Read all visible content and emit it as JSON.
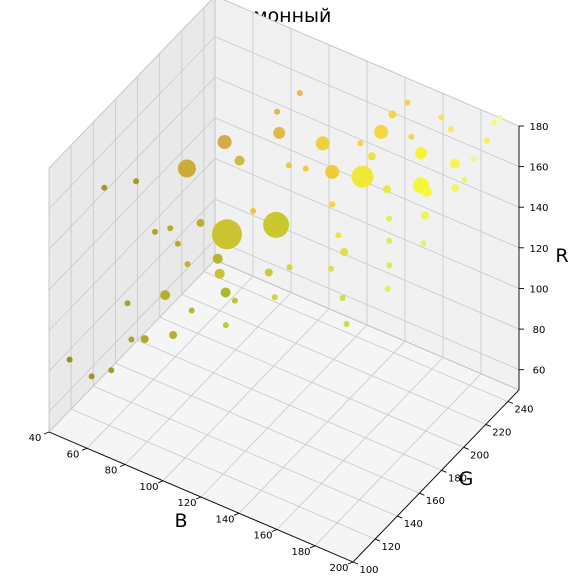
{
  "chart_data": {
    "type": "scatter3d",
    "title": "Лимонный",
    "xlabel": "B",
    "ylabel": "G",
    "zlabel": "R",
    "xlim": [
      40,
      200
    ],
    "ylim": [
      100,
      250
    ],
    "zlim": [
      50,
      180
    ],
    "xticks": [
      "40",
      "60",
      "80",
      "100",
      "120",
      "140",
      "160",
      "180",
      "200"
    ],
    "yticks": [
      "100",
      "120",
      "140",
      "160",
      "180",
      "200",
      "220",
      "240"
    ],
    "zticks": [
      "60",
      "80",
      "100",
      "120",
      "140",
      "160",
      "180"
    ],
    "grid": true,
    "colors": {
      "pane_left": "#e9e9e9",
      "pane_back": "#f1f1f1",
      "pane_floor": "#f5f5f5",
      "pane_edge": "#b8b8b8",
      "grid": "#c8c8c8"
    },
    "points": [
      {
        "x": 45,
        "y": 110,
        "z": 82,
        "s": 3,
        "c": "#8f8a0e"
      },
      {
        "x": 52,
        "y": 118,
        "z": 72,
        "s": 3,
        "c": "#978f12"
      },
      {
        "x": 60,
        "y": 122,
        "z": 76,
        "s": 3,
        "c": "#9c9414"
      },
      {
        "x": 63,
        "y": 135,
        "z": 85,
        "s": 3,
        "c": "#a59a16"
      },
      {
        "x": 58,
        "y": 140,
        "z": 98,
        "s": 3,
        "c": "#a3981a"
      },
      {
        "x": 70,
        "y": 135,
        "z": 88,
        "s": 4,
        "c": "#a8a218"
      },
      {
        "x": 72,
        "y": 150,
        "z": 102,
        "s": 5,
        "c": "#b2a81c"
      },
      {
        "x": 82,
        "y": 140,
        "z": 92,
        "s": 4,
        "c": "#aeaa1f"
      },
      {
        "x": 86,
        "y": 150,
        "z": 100,
        "s": 3,
        "c": "#b6ae21"
      },
      {
        "x": 55,
        "y": 170,
        "z": 115,
        "s": 3,
        "c": "#a89c18"
      },
      {
        "x": 48,
        "y": 165,
        "z": 140,
        "s": 3,
        "c": "#a09516"
      },
      {
        "x": 40,
        "y": 150,
        "z": 142,
        "s": 3,
        "c": "#9a9012"
      },
      {
        "x": 63,
        "y": 170,
        "z": 120,
        "s": 3,
        "c": "#b0a31b"
      },
      {
        "x": 70,
        "y": 165,
        "z": 118,
        "s": 3,
        "c": "#b4a41e"
      },
      {
        "x": 76,
        "y": 175,
        "z": 125,
        "s": 4,
        "c": "#b8aa20"
      },
      {
        "x": 78,
        "y": 160,
        "z": 114,
        "s": 3,
        "c": "#baad22"
      },
      {
        "x": 66,
        "y": 180,
        "z": 145,
        "s": 9,
        "c": "#c7a62a"
      },
      {
        "x": 90,
        "y": 175,
        "z": 125,
        "s": 15,
        "c": "#c8c020"
      },
      {
        "x": 88,
        "y": 170,
        "z": 115,
        "s": 5,
        "c": "#b3b020"
      },
      {
        "x": 92,
        "y": 165,
        "z": 112,
        "s": 5,
        "c": "#c4be22"
      },
      {
        "x": 100,
        "y": 165,
        "z": 102,
        "s": 3,
        "c": "#bcbc24"
      },
      {
        "x": 98,
        "y": 160,
        "z": 108,
        "s": 5,
        "c": "#a6b41e"
      },
      {
        "x": 104,
        "y": 150,
        "z": 100,
        "s": 3,
        "c": "#b9c526"
      },
      {
        "x": 85,
        "y": 195,
        "z": 148,
        "s": 5,
        "c": "#c9b832"
      },
      {
        "x": 80,
        "y": 190,
        "z": 158,
        "s": 7,
        "c": "#d4a43a"
      },
      {
        "x": 95,
        "y": 190,
        "z": 130,
        "s": 3,
        "c": "#e6c228"
      },
      {
        "x": 110,
        "y": 185,
        "z": 132,
        "s": 13,
        "c": "#c7c31f"
      },
      {
        "x": 112,
        "y": 175,
        "z": 115,
        "s": 4,
        "c": "#c9c629"
      },
      {
        "x": 118,
        "y": 170,
        "z": 108,
        "s": 3,
        "c": "#cfd02a"
      },
      {
        "x": 120,
        "y": 180,
        "z": 118,
        "s": 3,
        "c": "#d2d32f"
      },
      {
        "x": 100,
        "y": 205,
        "z": 162,
        "s": 6,
        "c": "#e0b43c"
      },
      {
        "x": 96,
        "y": 210,
        "z": 168,
        "s": 3,
        "c": "#dcb43a"
      },
      {
        "x": 108,
        "y": 200,
        "z": 152,
        "s": 3,
        "c": "#e8c730"
      },
      {
        "x": 114,
        "y": 205,
        "z": 150,
        "s": 3,
        "c": "#f0cb2e"
      },
      {
        "x": 120,
        "y": 210,
        "z": 162,
        "s": 7,
        "c": "#f2cb33"
      },
      {
        "x": 125,
        "y": 210,
        "z": 150,
        "s": 7,
        "c": "#f0c92c"
      },
      {
        "x": 105,
        "y": 215,
        "z": 178,
        "s": 3,
        "c": "#eeb044"
      },
      {
        "x": 128,
        "y": 205,
        "z": 138,
        "s": 3,
        "c": "#f4d030"
      },
      {
        "x": 134,
        "y": 200,
        "z": 128,
        "s": 3,
        "c": "#e8e33a"
      },
      {
        "x": 136,
        "y": 190,
        "z": 118,
        "s": 3,
        "c": "#d8dc3c"
      },
      {
        "x": 140,
        "y": 195,
        "z": 125,
        "s": 4,
        "c": "#d9e13f"
      },
      {
        "x": 145,
        "y": 185,
        "z": 110,
        "s": 3,
        "c": "#c6dd38"
      },
      {
        "x": 150,
        "y": 180,
        "z": 102,
        "s": 3,
        "c": "#c2dc3b"
      },
      {
        "x": 138,
        "y": 215,
        "z": 150,
        "s": 11,
        "c": "#f1e82a"
      },
      {
        "x": 134,
        "y": 220,
        "z": 162,
        "s": 3,
        "c": "#f3d030"
      },
      {
        "x": 140,
        "y": 220,
        "z": 158,
        "s": 4,
        "c": "#ece23b"
      },
      {
        "x": 142,
        "y": 225,
        "z": 168,
        "s": 7,
        "c": "#f2d632"
      },
      {
        "x": 148,
        "y": 220,
        "z": 145,
        "s": 4,
        "c": "#e6e83a"
      },
      {
        "x": 152,
        "y": 215,
        "z": 135,
        "s": 3,
        "c": "#e4ee3e"
      },
      {
        "x": 155,
        "y": 210,
        "z": 128,
        "s": 3,
        "c": "#dce94a"
      },
      {
        "x": 158,
        "y": 205,
        "z": 120,
        "s": 3,
        "c": "#d8ea48"
      },
      {
        "x": 160,
        "y": 200,
        "z": 112,
        "s": 3,
        "c": "#e0ef4a"
      },
      {
        "x": 145,
        "y": 230,
        "z": 175,
        "s": 4,
        "c": "#f5d236"
      },
      {
        "x": 150,
        "y": 235,
        "z": 180,
        "s": 3,
        "c": "#f6cc48"
      },
      {
        "x": 155,
        "y": 230,
        "z": 168,
        "s": 3,
        "c": "#f1d24c"
      },
      {
        "x": 160,
        "y": 230,
        "z": 162,
        "s": 6,
        "c": "#f7f228"
      },
      {
        "x": 163,
        "y": 225,
        "z": 150,
        "s": 8,
        "c": "#f4f626"
      },
      {
        "x": 166,
        "y": 225,
        "z": 148,
        "s": 5,
        "c": "#f5f73a"
      },
      {
        "x": 168,
        "y": 220,
        "z": 140,
        "s": 4,
        "c": "#eaf648"
      },
      {
        "x": 170,
        "y": 215,
        "z": 130,
        "s": 3,
        "c": "#e3f154"
      },
      {
        "x": 165,
        "y": 240,
        "z": 176,
        "s": 3,
        "c": "#f8dd4c"
      },
      {
        "x": 170,
        "y": 240,
        "z": 172,
        "s": 3,
        "c": "#f2ec5a"
      },
      {
        "x": 175,
        "y": 235,
        "z": 160,
        "s": 5,
        "c": "#f5f541"
      },
      {
        "x": 178,
        "y": 230,
        "z": 152,
        "s": 4,
        "c": "#eef55a"
      },
      {
        "x": 180,
        "y": 235,
        "z": 154,
        "s": 3,
        "c": "#eaf568"
      },
      {
        "x": 182,
        "y": 240,
        "z": 162,
        "s": 3,
        "c": "#f6f27a"
      },
      {
        "x": 186,
        "y": 245,
        "z": 170,
        "s": 3,
        "c": "#f3f04e"
      },
      {
        "x": 188,
        "y": 248,
        "z": 178,
        "s": 3,
        "c": "#f7f580"
      },
      {
        "x": 190,
        "y": 250,
        "z": 180,
        "s": 3,
        "c": "#f8f89a"
      }
    ]
  }
}
